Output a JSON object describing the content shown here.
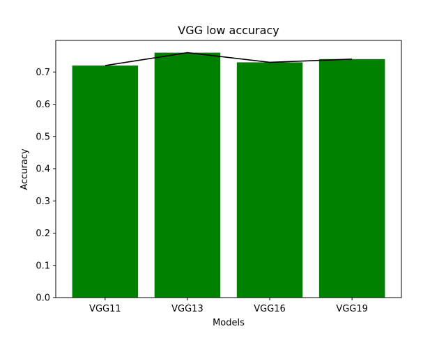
{
  "chart_data": {
    "type": "bar",
    "title": "VGG low accuracy",
    "xlabel": "Models",
    "ylabel": "Accuracy",
    "categories": [
      "VGG11",
      "VGG13",
      "VGG16",
      "VGG19"
    ],
    "series": [
      {
        "kind": "bar",
        "values": [
          0.72,
          0.76,
          0.73,
          0.74
        ],
        "color": "#008000"
      },
      {
        "kind": "line",
        "values": [
          0.72,
          0.76,
          0.73,
          0.74
        ],
        "color": "#000000"
      }
    ],
    "yticks": [
      "0.0",
      "0.1",
      "0.2",
      "0.3",
      "0.4",
      "0.5",
      "0.6",
      "0.7"
    ],
    "ylim": [
      0,
      0.798
    ],
    "grid": false,
    "legend": "none"
  }
}
